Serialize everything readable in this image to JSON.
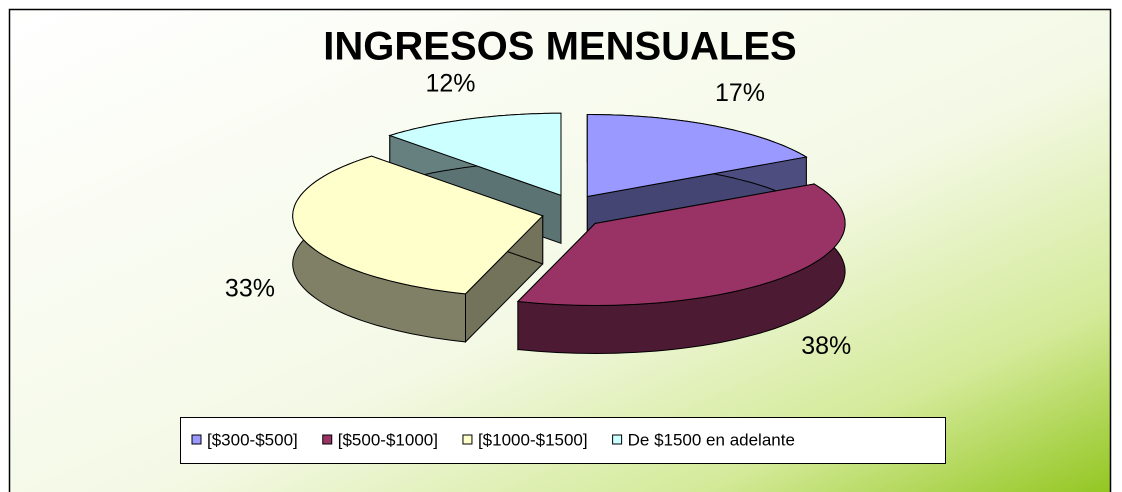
{
  "chart_data": {
    "type": "pie",
    "title": "INGRESOS MENSUALES",
    "categories": [
      "[$300-$500]",
      "[$500-$1000]",
      "[$1000-$1500]",
      "De $1500 en adelante"
    ],
    "values": [
      17,
      38,
      33,
      12
    ],
    "value_labels": [
      "17%",
      "38%",
      "33%",
      "12%"
    ],
    "colors": [
      "#9999ff",
      "#993366",
      "#ffffcc",
      "#ccffff"
    ],
    "legend": "bottom"
  }
}
